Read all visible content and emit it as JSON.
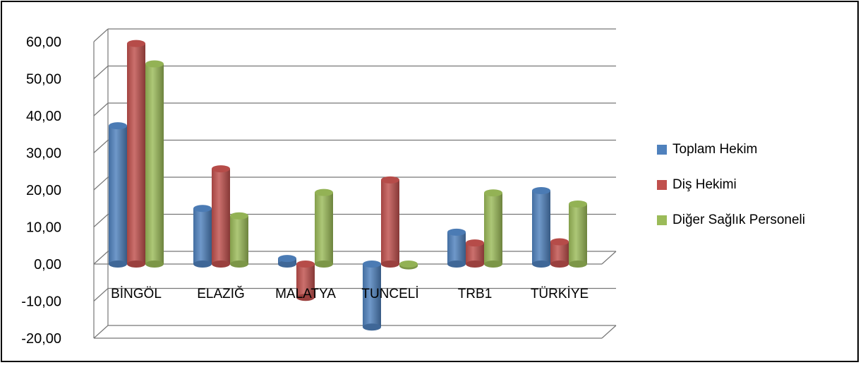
{
  "chart_data": {
    "type": "bar",
    "categories": [
      "BİNGÖL",
      "ELAZIĞ",
      "MALATYA",
      "TUNCELİ",
      "TRB1",
      "TÜRKİYE"
    ],
    "series": [
      {
        "name": "Toplam Hekim",
        "color": "#4F81BD",
        "values": [
          37.3,
          15.0,
          1.5,
          -17.0,
          8.6,
          19.8
        ]
      },
      {
        "name": "Diş Hekimi",
        "color": "#C0504D",
        "values": [
          59.5,
          25.7,
          -9.0,
          22.7,
          5.7,
          6.0
        ]
      },
      {
        "name": "Diğer Sağlık Personeli",
        "color": "#9BBB59",
        "values": [
          54.0,
          13.0,
          19.3,
          -0.5,
          19.2,
          16.2
        ]
      }
    ],
    "yticks": [
      "60,00",
      "50,00",
      "40,00",
      "30,00",
      "20,00",
      "10,00",
      "0,00",
      "-10,00",
      "-20,00"
    ],
    "ylim": [
      -20,
      60
    ],
    "legend_position": "right",
    "grid": true
  }
}
